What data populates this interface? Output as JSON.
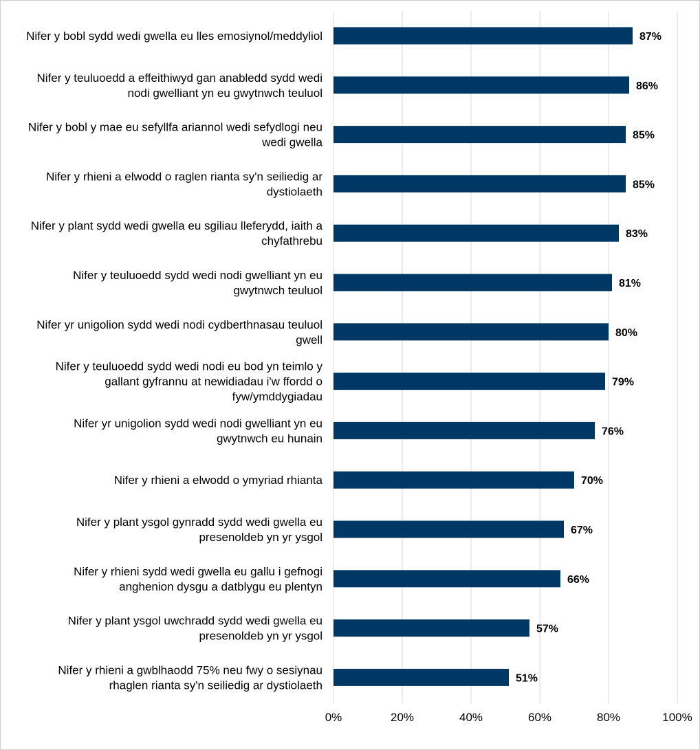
{
  "chart_data": {
    "type": "bar",
    "orientation": "horizontal",
    "title": "",
    "xlabel": "",
    "ylabel": "",
    "xlim": [
      0,
      100
    ],
    "grid": true,
    "bar_color": "#003865",
    "gridline_color": "#d9d9d9",
    "x_ticks": [
      "0%",
      "20%",
      "40%",
      "60%",
      "80%",
      "100%"
    ],
    "categories": [
      [
        "Nifer y bobl sydd wedi gwella eu lles emosiynol/meddyliol"
      ],
      [
        "Nifer y teuluoedd a effeithiwyd gan anabledd sydd wedi",
        "nodi gwelliant yn eu gwytnwch teuluol"
      ],
      [
        "Nifer y bobl y mae eu sefyllfa ariannol wedi sefydlogi neu",
        "wedi gwella"
      ],
      [
        "Nifer y rhieni a elwodd o raglen rianta sy'n seiliedig ar",
        "dystiolaeth"
      ],
      [
        "Nifer y plant sydd wedi gwella eu sgiliau lleferydd, iaith a",
        "chyfathrebu"
      ],
      [
        "Nifer y teuluoedd sydd wedi nodi gwelliant yn eu",
        "gwytnwch teuluol"
      ],
      [
        "Nifer yr unigolion sydd wedi nodi cydberthnasau teuluol",
        "gwell"
      ],
      [
        "Nifer y teuluoedd sydd wedi nodi eu bod yn teimlo y",
        "gallant gyfrannu at newidiadau i'w ffordd o",
        "fyw/ymddygiadau"
      ],
      [
        "Nifer yr unigolion sydd wedi nodi gwelliant yn eu",
        "gwytnwch eu hunain"
      ],
      [
        "Nifer y rhieni a elwodd o ymyriad rhianta"
      ],
      [
        "Nifer y plant ysgol gynradd sydd wedi gwella eu",
        "presenoldeb yn yr ysgol"
      ],
      [
        "Nifer y rhieni sydd wedi gwella eu gallu i gefnogi",
        "anghenion dysgu a datblygu eu plentyn"
      ],
      [
        "Nifer y plant ysgol uwchradd sydd wedi gwella eu",
        "presenoldeb yn yr ysgol"
      ],
      [
        "Nifer y rhieni a gwblhaodd 75% neu fwy o sesiynau",
        "rhaglen rianta sy'n seiliedig ar dystiolaeth"
      ]
    ],
    "values": [
      87,
      86,
      85,
      85,
      83,
      81,
      80,
      79,
      76,
      70,
      67,
      66,
      57,
      51
    ],
    "value_labels": [
      "87%",
      "86%",
      "85%",
      "85%",
      "83%",
      "81%",
      "80%",
      "79%",
      "76%",
      "70%",
      "67%",
      "66%",
      "57%",
      "51%"
    ]
  }
}
